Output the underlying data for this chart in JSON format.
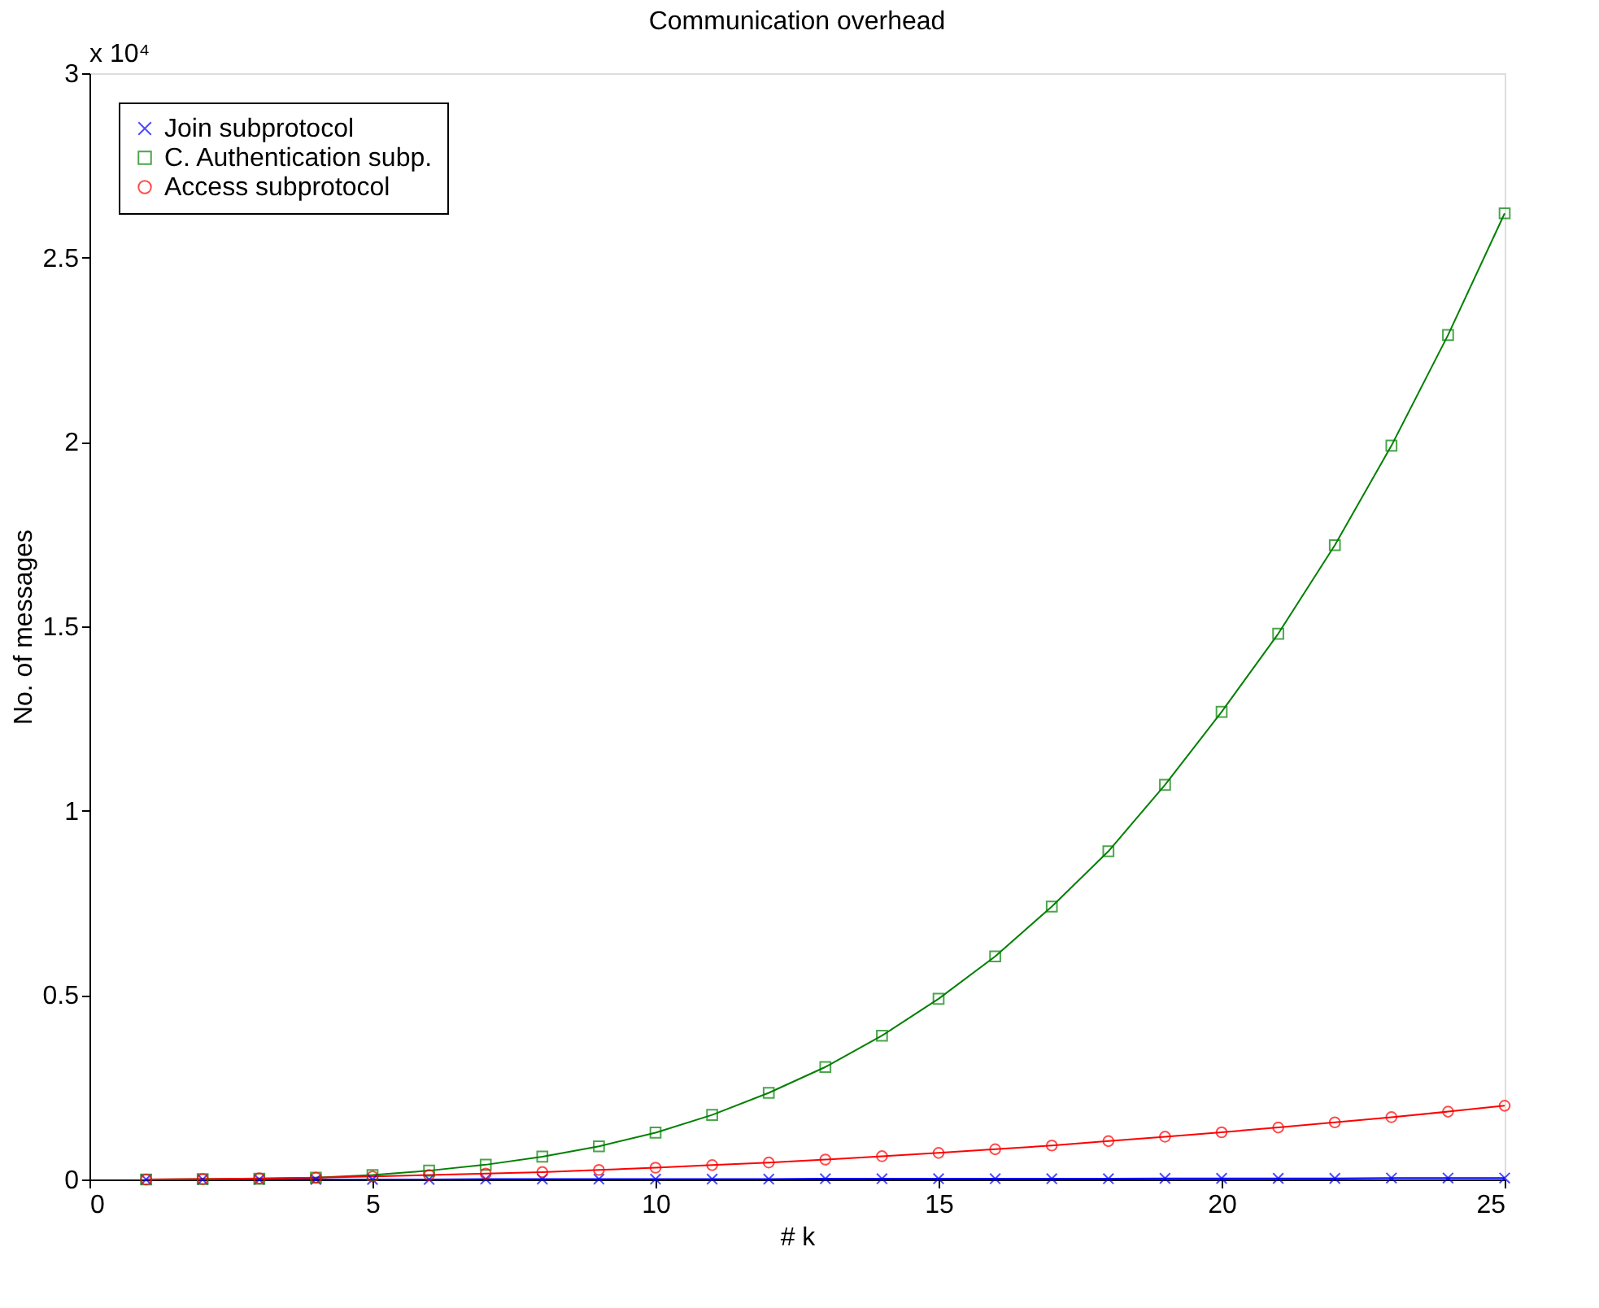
{
  "chart_data": {
    "type": "line",
    "title": "Communication overhead",
    "xlabel": "# k",
    "ylabel": "No. of messages",
    "annotations": [
      "x 10⁴"
    ],
    "x": [
      1,
      2,
      3,
      4,
      5,
      6,
      7,
      8,
      9,
      10,
      11,
      12,
      13,
      14,
      15,
      16,
      17,
      18,
      19,
      20,
      21,
      22,
      23,
      24,
      25
    ],
    "series": [
      {
        "name": "Join subprotocol",
        "color": "#0000ff",
        "marker": "cross",
        "values": [
          0,
          0,
          0,
          0,
          0,
          0,
          0.001,
          0.001,
          0.001,
          0.001,
          0.001,
          0.001,
          0.002,
          0.002,
          0.002,
          0.002,
          0.002,
          0.002,
          0.003,
          0.003,
          0.003,
          0.003,
          0.004,
          0.004,
          0.004
        ]
      },
      {
        "name": "C. Authentication subp.",
        "color": "#008000",
        "marker": "square",
        "values": [
          0,
          0.001,
          0.002,
          0.005,
          0.012,
          0.024,
          0.04,
          0.062,
          0.09,
          0.127,
          0.175,
          0.235,
          0.305,
          0.39,
          0.49,
          0.605,
          0.74,
          0.89,
          1.07,
          1.268,
          1.48,
          1.72,
          1.99,
          2.29,
          2.62
        ]
      },
      {
        "name": "Access subprotocol",
        "color": "#ff0000",
        "marker": "circle",
        "values": [
          0,
          0.001,
          0.003,
          0.005,
          0.008,
          0.012,
          0.016,
          0.02,
          0.026,
          0.032,
          0.039,
          0.046,
          0.054,
          0.063,
          0.072,
          0.082,
          0.092,
          0.104,
          0.116,
          0.128,
          0.141,
          0.155,
          0.169,
          0.184,
          0.2
        ]
      }
    ],
    "xlim": [
      0,
      25
    ],
    "xticks": [
      0,
      5,
      10,
      15,
      20,
      25
    ],
    "ylim": [
      0,
      3
    ],
    "yticks": [
      0,
      0.5,
      1,
      1.5,
      2,
      2.5,
      3
    ],
    "grid": false,
    "legend": "top left",
    "line_style": "solid"
  }
}
